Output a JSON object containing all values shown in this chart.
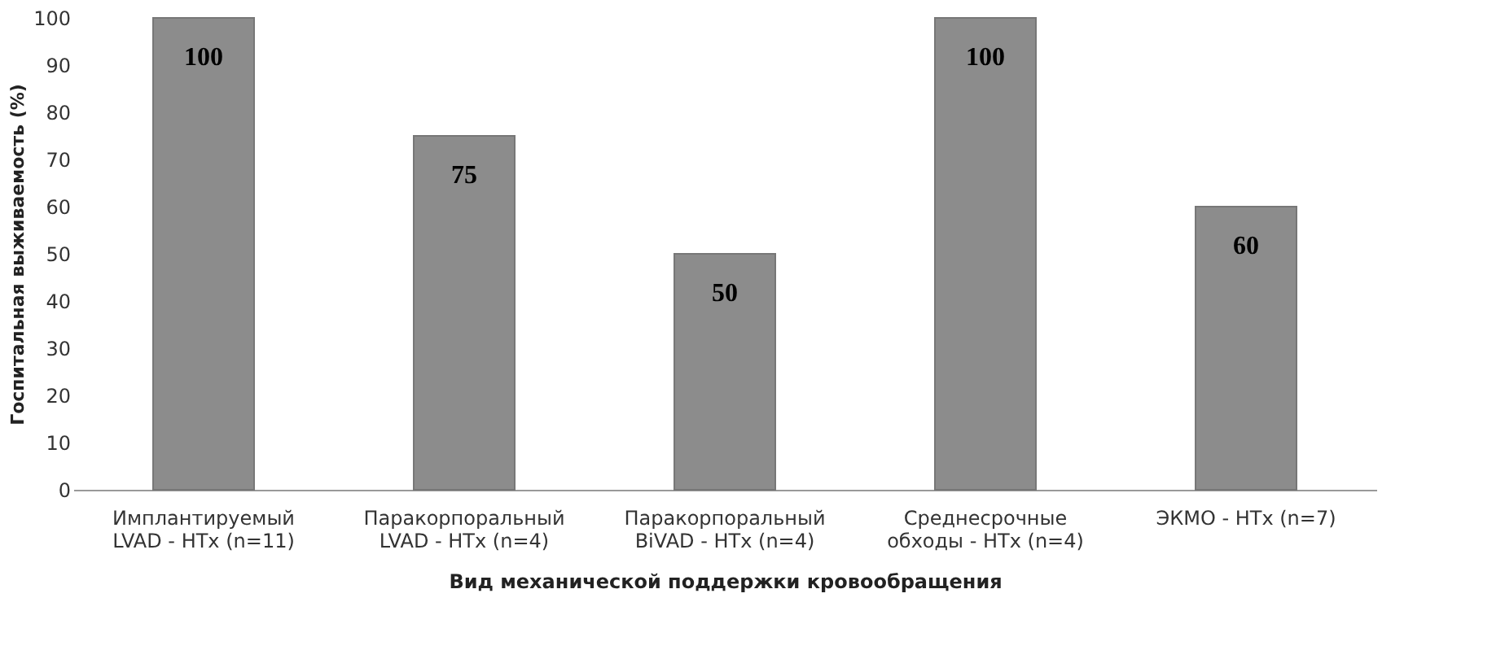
{
  "chart_data": {
    "type": "bar",
    "xlabel": "Вид механической поддержки кровообращения",
    "ylabel": "Госпитальная выживаемость (%)",
    "categories": [
      "Имплантируемый\nLVAD - HTx (n=11)",
      "Паракорпоральный\nLVAD  - HTx (n=4)",
      "Паракорпоральный\nBiVAD  - HTx (n=4)",
      "Среднесрочные\nобходы  - HTx (n=4)",
      "ЭКМО  - HTx (n=7)"
    ],
    "values": [
      100,
      75,
      50,
      100,
      60
    ],
    "color": "#8c8c8c",
    "ylim": [
      0,
      100
    ],
    "yticks": [
      0,
      10,
      20,
      30,
      40,
      50,
      60,
      70,
      80,
      90,
      100
    ],
    "data_labels": true,
    "grid": false
  }
}
